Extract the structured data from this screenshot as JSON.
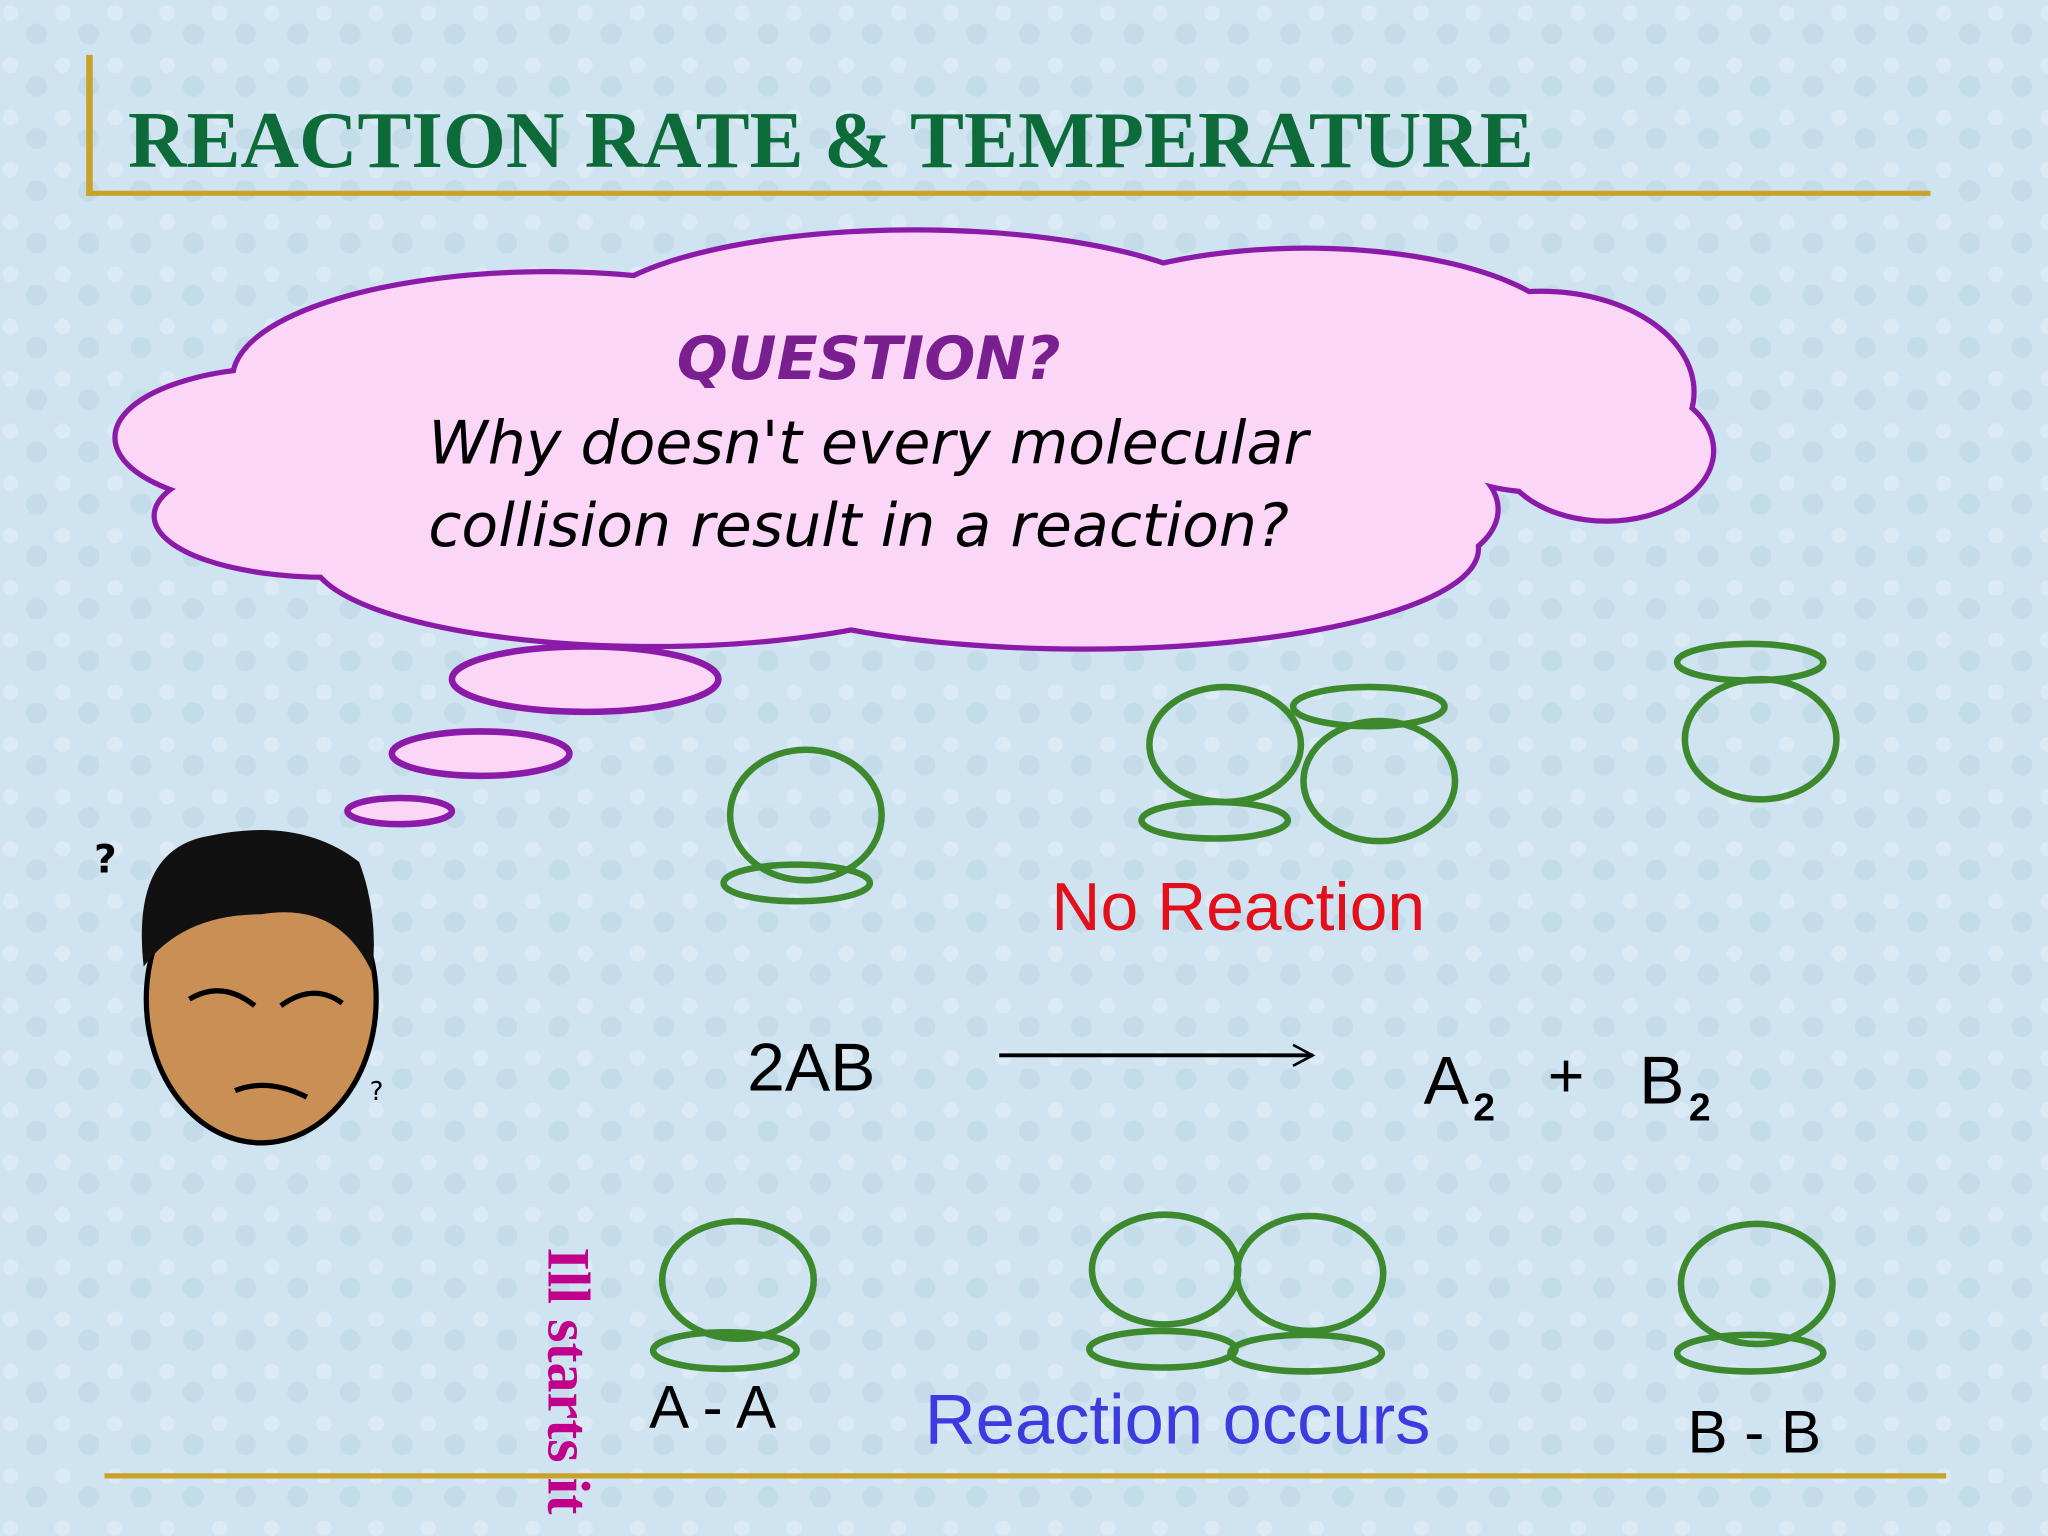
{
  "header": {
    "title": "REACTION RATE & TEMPERATURE"
  },
  "thought_bubble": {
    "heading": "QUESTION?",
    "lines": [
      "Why doesn't every molecular",
      "collision result in a reaction?"
    ]
  },
  "labels": {
    "no_reaction": "No Reaction",
    "reactant": "2AB",
    "product_a": "A",
    "product_a_sub": "2",
    "plus": "+",
    "product_b": "B",
    "product_b_sub": "2",
    "molecule_a": "A - A",
    "reaction_occurs": "Reaction occurs",
    "molecule_b": "B - B"
  },
  "side_text": "Ill starts it"
}
